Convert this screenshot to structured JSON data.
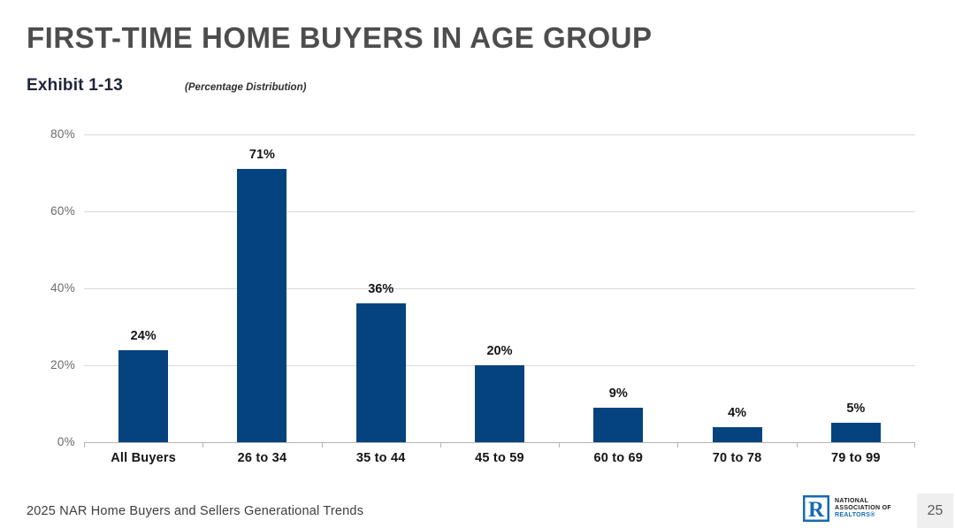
{
  "header": {
    "title": "FIRST-TIME HOME BUYERS IN AGE GROUP"
  },
  "exhibit": {
    "label": "Exhibit 1-13",
    "subtitle": "(Percentage Distribution)"
  },
  "chart_data": {
    "type": "bar",
    "title": "FIRST-TIME HOME BUYERS IN AGE GROUP",
    "subtitle": "(Percentage Distribution)",
    "categories": [
      "All Buyers",
      "26 to 34",
      "35 to 44",
      "45 to 59",
      "60 to 69",
      "70 to 78",
      "79 to 99"
    ],
    "values": [
      24,
      71,
      36,
      20,
      9,
      4,
      5
    ],
    "value_labels": [
      "24%",
      "71%",
      "36%",
      "20%",
      "9%",
      "4%",
      "5%"
    ],
    "xlabel": "",
    "ylabel": "",
    "ylim": [
      0,
      80
    ],
    "yticks": [
      "80%",
      "60%",
      "40%",
      "20%",
      "0%"
    ],
    "grid": true,
    "legend": false,
    "bar_color": "#04437e"
  },
  "footer": {
    "source": "2025 NAR Home Buyers and Sellers Generational Trends",
    "page_number": "25",
    "logo": {
      "letter": "R",
      "line1": "NATIONAL",
      "line2": "ASSOCIATION OF",
      "line3": "REALTORS®"
    }
  },
  "colors": {
    "bar": "#04437e",
    "nar_blue": "#176ab3",
    "gridline": "#d9d9d9",
    "axis": "#b4b4b4",
    "title_gray": "#4d4d4d",
    "page_box_bg": "#efefef"
  }
}
